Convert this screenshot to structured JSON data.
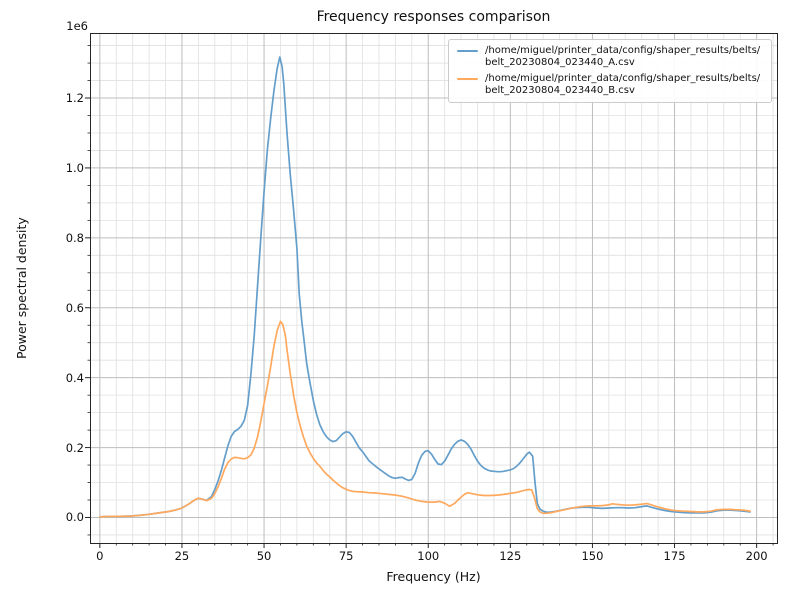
{
  "chart_data": {
    "type": "line",
    "title": "Frequency responses comparison",
    "xlabel": "Frequency (Hz)",
    "ylabel": "Power spectral density",
    "y_offset_text": "1e6",
    "y_unit_multiplier": 1000000,
    "xlim": [
      -3.0,
      206.2
    ],
    "ylim": [
      -0.073,
      1.386
    ],
    "x_major_ticks": [
      0,
      25,
      50,
      75,
      100,
      125,
      150,
      175,
      200
    ],
    "x_minor_step": 5,
    "y_major_ticks": [
      0.0,
      0.2,
      0.4,
      0.6,
      0.8,
      1.0,
      1.2
    ],
    "y_minor_step": 0.05,
    "grid": "major+minor",
    "legend_position": "upper right",
    "axis_color": "#262626",
    "major_grid_color": "#bdbdbd",
    "minor_grid_color": "#e0e0e0",
    "series": [
      {
        "label": "/home/miguel/printer_data/config/shaper_results/belts/belt_20230804_023440_A.csv",
        "color": "#649ecb",
        "points": [
          [
            0,
            0.002
          ],
          [
            3,
            0.003
          ],
          [
            6,
            0.003
          ],
          [
            9,
            0.004
          ],
          [
            12,
            0.006
          ],
          [
            15,
            0.009
          ],
          [
            18,
            0.013
          ],
          [
            21,
            0.017
          ],
          [
            23,
            0.021
          ],
          [
            25,
            0.027
          ],
          [
            27,
            0.038
          ],
          [
            29,
            0.051
          ],
          [
            30,
            0.055
          ],
          [
            31,
            0.053
          ],
          [
            32.5,
            0.049
          ],
          [
            34,
            0.06
          ],
          [
            35,
            0.08
          ],
          [
            36,
            0.105
          ],
          [
            37,
            0.135
          ],
          [
            38,
            0.17
          ],
          [
            39,
            0.205
          ],
          [
            40,
            0.232
          ],
          [
            41,
            0.246
          ],
          [
            42,
            0.252
          ],
          [
            43,
            0.261
          ],
          [
            44,
            0.278
          ],
          [
            45,
            0.32
          ],
          [
            46,
            0.41
          ],
          [
            47,
            0.52
          ],
          [
            48,
            0.66
          ],
          [
            49,
            0.8
          ],
          [
            50,
            0.93
          ],
          [
            51,
            1.05
          ],
          [
            52,
            1.14
          ],
          [
            53,
            1.22
          ],
          [
            54,
            1.285
          ],
          [
            54.8,
            1.317
          ],
          [
            55.5,
            1.29
          ],
          [
            56,
            1.24
          ],
          [
            57,
            1.1
          ],
          [
            58,
            0.98
          ],
          [
            59,
            0.88
          ],
          [
            60,
            0.77
          ],
          [
            60.7,
            0.64
          ],
          [
            61.5,
            0.56
          ],
          [
            62,
            0.52
          ],
          [
            63,
            0.44
          ],
          [
            64,
            0.385
          ],
          [
            65,
            0.335
          ],
          [
            66,
            0.295
          ],
          [
            67,
            0.265
          ],
          [
            68,
            0.245
          ],
          [
            69,
            0.231
          ],
          [
            70,
            0.222
          ],
          [
            71,
            0.217
          ],
          [
            72,
            0.22
          ],
          [
            73,
            0.23
          ],
          [
            74,
            0.24
          ],
          [
            75,
            0.245
          ],
          [
            76,
            0.243
          ],
          [
            77,
            0.232
          ],
          [
            78,
            0.215
          ],
          [
            79,
            0.199
          ],
          [
            80,
            0.188
          ],
          [
            82,
            0.162
          ],
          [
            84,
            0.146
          ],
          [
            86,
            0.132
          ],
          [
            88,
            0.119
          ],
          [
            89,
            0.114
          ],
          [
            90,
            0.112
          ],
          [
            91,
            0.114
          ],
          [
            92,
            0.115
          ],
          [
            93,
            0.11
          ],
          [
            94,
            0.106
          ],
          [
            95,
            0.109
          ],
          [
            96,
            0.126
          ],
          [
            97,
            0.156
          ],
          [
            98,
            0.178
          ],
          [
            99,
            0.189
          ],
          [
            100,
            0.191
          ],
          [
            101,
            0.181
          ],
          [
            102,
            0.166
          ],
          [
            103,
            0.153
          ],
          [
            104,
            0.151
          ],
          [
            105,
            0.162
          ],
          [
            106,
            0.178
          ],
          [
            107,
            0.196
          ],
          [
            108,
            0.209
          ],
          [
            109,
            0.218
          ],
          [
            110,
            0.222
          ],
          [
            111,
            0.218
          ],
          [
            112,
            0.209
          ],
          [
            113,
            0.196
          ],
          [
            114,
            0.178
          ],
          [
            115,
            0.161
          ],
          [
            116,
            0.149
          ],
          [
            117,
            0.141
          ],
          [
            118,
            0.136
          ],
          [
            119,
            0.133
          ],
          [
            120,
            0.132
          ],
          [
            121,
            0.131
          ],
          [
            122,
            0.131
          ],
          [
            123,
            0.132
          ],
          [
            124,
            0.134
          ],
          [
            125,
            0.136
          ],
          [
            126,
            0.14
          ],
          [
            127,
            0.147
          ],
          [
            128,
            0.157
          ],
          [
            129,
            0.169
          ],
          [
            130,
            0.181
          ],
          [
            130.8,
            0.187
          ],
          [
            131.8,
            0.175
          ],
          [
            132.5,
            0.1
          ],
          [
            133.2,
            0.04
          ],
          [
            134,
            0.024
          ],
          [
            135,
            0.018
          ],
          [
            136,
            0.015
          ],
          [
            137,
            0.015
          ],
          [
            139,
            0.018
          ],
          [
            141,
            0.022
          ],
          [
            143,
            0.026
          ],
          [
            145,
            0.028
          ],
          [
            147,
            0.029
          ],
          [
            149,
            0.029
          ],
          [
            151,
            0.027
          ],
          [
            153,
            0.026
          ],
          [
            155,
            0.027
          ],
          [
            157,
            0.028
          ],
          [
            159,
            0.028
          ],
          [
            161,
            0.027
          ],
          [
            163,
            0.028
          ],
          [
            165,
            0.031
          ],
          [
            166.5,
            0.033
          ],
          [
            168,
            0.029
          ],
          [
            170,
            0.024
          ],
          [
            172,
            0.02
          ],
          [
            174,
            0.017
          ],
          [
            176,
            0.015
          ],
          [
            178,
            0.014
          ],
          [
            180,
            0.013
          ],
          [
            182,
            0.013
          ],
          [
            184,
            0.013
          ],
          [
            186,
            0.015
          ],
          [
            188,
            0.019
          ],
          [
            190,
            0.021
          ],
          [
            192,
            0.021
          ],
          [
            194,
            0.02
          ],
          [
            196,
            0.018
          ],
          [
            198,
            0.016
          ]
        ]
      },
      {
        "label": "/home/miguel/printer_data/config/shaper_results/belts/belt_20230804_023440_B.csv",
        "color": "#ffa95e",
        "points": [
          [
            0,
            0.002
          ],
          [
            3,
            0.003
          ],
          [
            6,
            0.003
          ],
          [
            9,
            0.004
          ],
          [
            12,
            0.006
          ],
          [
            15,
            0.009
          ],
          [
            18,
            0.013
          ],
          [
            21,
            0.017
          ],
          [
            23,
            0.021
          ],
          [
            25,
            0.027
          ],
          [
            27,
            0.038
          ],
          [
            29,
            0.051
          ],
          [
            30,
            0.055
          ],
          [
            31,
            0.053
          ],
          [
            32.5,
            0.048
          ],
          [
            34,
            0.055
          ],
          [
            35,
            0.068
          ],
          [
            36,
            0.088
          ],
          [
            37,
            0.112
          ],
          [
            38,
            0.138
          ],
          [
            39,
            0.157
          ],
          [
            40,
            0.167
          ],
          [
            41,
            0.172
          ],
          [
            42,
            0.171
          ],
          [
            43,
            0.169
          ],
          [
            44,
            0.168
          ],
          [
            45,
            0.171
          ],
          [
            46,
            0.179
          ],
          [
            47,
            0.198
          ],
          [
            48,
            0.23
          ],
          [
            49,
            0.275
          ],
          [
            50,
            0.325
          ],
          [
            51,
            0.375
          ],
          [
            52,
            0.43
          ],
          [
            53,
            0.49
          ],
          [
            54,
            0.535
          ],
          [
            55,
            0.561
          ],
          [
            55.7,
            0.552
          ],
          [
            56.5,
            0.52
          ],
          [
            57,
            0.48
          ],
          [
            58,
            0.41
          ],
          [
            59,
            0.35
          ],
          [
            60,
            0.3
          ],
          [
            61,
            0.262
          ],
          [
            62,
            0.23
          ],
          [
            63,
            0.204
          ],
          [
            64,
            0.185
          ],
          [
            65,
            0.169
          ],
          [
            66,
            0.156
          ],
          [
            67,
            0.146
          ],
          [
            68,
            0.134
          ],
          [
            69,
            0.124
          ],
          [
            70,
            0.116
          ],
          [
            71,
            0.107
          ],
          [
            72,
            0.099
          ],
          [
            73,
            0.091
          ],
          [
            74,
            0.085
          ],
          [
            75,
            0.081
          ],
          [
            76,
            0.077
          ],
          [
            77,
            0.075
          ],
          [
            78,
            0.074
          ],
          [
            80,
            0.073
          ],
          [
            82,
            0.071
          ],
          [
            84,
            0.07
          ],
          [
            86,
            0.068
          ],
          [
            88,
            0.066
          ],
          [
            90,
            0.064
          ],
          [
            92,
            0.061
          ],
          [
            94,
            0.056
          ],
          [
            96,
            0.05
          ],
          [
            98,
            0.046
          ],
          [
            100,
            0.044
          ],
          [
            102,
            0.044
          ],
          [
            103.5,
            0.046
          ],
          [
            105,
            0.041
          ],
          [
            106.5,
            0.032
          ],
          [
            108,
            0.04
          ],
          [
            109.5,
            0.054
          ],
          [
            111,
            0.066
          ],
          [
            112,
            0.071
          ],
          [
            113,
            0.069
          ],
          [
            114,
            0.067
          ],
          [
            115,
            0.065
          ],
          [
            117,
            0.063
          ],
          [
            119,
            0.063
          ],
          [
            121,
            0.064
          ],
          [
            123,
            0.066
          ],
          [
            125,
            0.069
          ],
          [
            127,
            0.072
          ],
          [
            129,
            0.077
          ],
          [
            130.5,
            0.08
          ],
          [
            131.5,
            0.079
          ],
          [
            132.3,
            0.058
          ],
          [
            133.2,
            0.025
          ],
          [
            134,
            0.016
          ],
          [
            135,
            0.012
          ],
          [
            136,
            0.012
          ],
          [
            137,
            0.013
          ],
          [
            139,
            0.017
          ],
          [
            141,
            0.021
          ],
          [
            143,
            0.025
          ],
          [
            145,
            0.029
          ],
          [
            147,
            0.032
          ],
          [
            149,
            0.033
          ],
          [
            151,
            0.033
          ],
          [
            153,
            0.034
          ],
          [
            155,
            0.036
          ],
          [
            156,
            0.039
          ],
          [
            157,
            0.038
          ],
          [
            159,
            0.036
          ],
          [
            161,
            0.035
          ],
          [
            163,
            0.036
          ],
          [
            165,
            0.038
          ],
          [
            166.5,
            0.04
          ],
          [
            168,
            0.036
          ],
          [
            170,
            0.03
          ],
          [
            172,
            0.025
          ],
          [
            174,
            0.021
          ],
          [
            176,
            0.019
          ],
          [
            178,
            0.018
          ],
          [
            180,
            0.017
          ],
          [
            182,
            0.016
          ],
          [
            184,
            0.016
          ],
          [
            186,
            0.018
          ],
          [
            188,
            0.022
          ],
          [
            190,
            0.023
          ],
          [
            192,
            0.023
          ],
          [
            194,
            0.022
          ],
          [
            196,
            0.021
          ],
          [
            198,
            0.018
          ]
        ]
      }
    ]
  }
}
